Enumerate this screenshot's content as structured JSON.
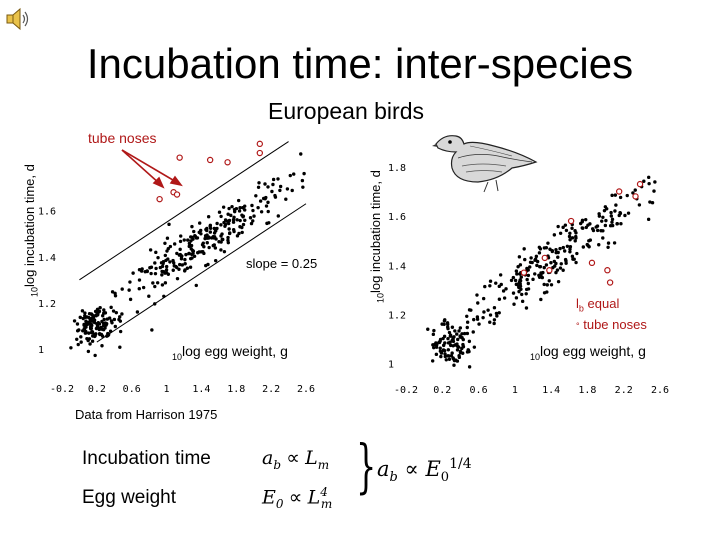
{
  "slide": {
    "title": "Incubation time: inter-species",
    "subtitle": "European birds",
    "credit": "Data from Harrison 1975"
  },
  "colors": {
    "accent": "#b01818",
    "points": "#000000"
  },
  "icons": {
    "speaker": "speaker-icon",
    "bird": "bird-illustration"
  },
  "left_plot": {
    "ylabel_sub": "10",
    "ylabel": "log incubation time, d",
    "xlabel_sub": "10",
    "xlabel": "log egg weight, g",
    "annotation": "tube noses",
    "slope_label": "slope = 0.25"
  },
  "right_plot": {
    "ylabel_sub": "10",
    "ylabel": "log incubation time, d",
    "xlabel_sub": "10",
    "xlabel": "log egg weight, g",
    "annotation_l": "l",
    "annotation_b": "b",
    "annotation_equal": " equal",
    "annotation_line2": "tube noses"
  },
  "formula": {
    "row1_label": "Incubation time",
    "row1_a": "a",
    "row1_a_sub": "b",
    "row1_L": "L",
    "row1_L_sub": "m",
    "row2_label": "Egg weight",
    "row2_E": "E",
    "row2_E_sub": "0",
    "row2_L": "L",
    "row2_L_sup": "4",
    "row2_L_sub": "m",
    "propto": "∝",
    "result_a": "a",
    "result_a_sub": "b",
    "result_E": "E",
    "result_E_sub": "0",
    "result_exp": "1/4",
    "brace": "}"
  },
  "chart_data": [
    {
      "type": "scatter",
      "title": "European birds",
      "xlabel": "10log egg weight, g",
      "ylabel": "10log incubation time, d",
      "xlim": [
        -0.2,
        2.6
      ],
      "ylim": [
        0.9,
        1.95
      ],
      "xticks": [
        -0.2,
        0.2,
        0.6,
        1,
        1.4,
        1.8,
        2.2,
        2.6
      ],
      "xtick_labels": [
        "-0.2",
        "0.2",
        "0.6",
        "1",
        "1.4",
        "1.8",
        "2.2",
        "2.6"
      ],
      "yticks": [
        1.0,
        1.2,
        1.4,
        1.6
      ],
      "ytick_labels": [
        "1",
        "1.2",
        "1.4",
        "1.6"
      ],
      "guide_lines": [
        {
          "name": "upper",
          "x": [
            0.0,
            2.4
          ],
          "y": [
            1.3,
            1.9
          ]
        },
        {
          "name": "lower",
          "x": [
            0.2,
            2.6
          ],
          "y": [
            1.03,
            1.63
          ]
        }
      ],
      "highlighted": [
        {
          "x": 1.15,
          "y": 1.83
        },
        {
          "x": 1.5,
          "y": 1.82
        },
        {
          "x": 1.7,
          "y": 1.81
        },
        {
          "x": 2.07,
          "y": 1.89
        },
        {
          "x": 2.07,
          "y": 1.85
        },
        {
          "x": 0.92,
          "y": 1.65
        },
        {
          "x": 1.08,
          "y": 1.68
        },
        {
          "x": 1.12,
          "y": 1.67
        }
      ],
      "series": {
        "name": "species",
        "count": 380,
        "clusters": [
          {
            "n": 120,
            "x_mean": 0.18,
            "x_sd": 0.12,
            "y_mean": 1.1,
            "y_sd": 0.045
          },
          {
            "n": 260,
            "x_mean": 1.45,
            "x_sd": 0.5,
            "slope": 0.25,
            "intercept": 1.11,
            "y_sd": 0.05
          }
        ]
      }
    },
    {
      "type": "scatter",
      "title": "European birds",
      "xlabel": "10log egg weight, g",
      "ylabel": "10log incubation time, d",
      "xlim": [
        -0.2,
        2.6
      ],
      "ylim": [
        0.95,
        1.95
      ],
      "xticks": [
        -0.2,
        0.2,
        0.6,
        1,
        1.4,
        1.8,
        2.2,
        2.6
      ],
      "xtick_labels": [
        "-0.2",
        "0.2",
        "0.6",
        "1",
        "1.4",
        "1.8",
        "2.2",
        "2.6"
      ],
      "yticks": [
        1.0,
        1.2,
        1.4,
        1.6,
        1.8
      ],
      "ytick_labels": [
        "1",
        "1.2",
        "1.4",
        "1.6",
        "1.8"
      ],
      "highlighted": [
        {
          "x": 1.1,
          "y": 1.37
        },
        {
          "x": 1.33,
          "y": 1.43
        },
        {
          "x": 1.38,
          "y": 1.38
        },
        {
          "x": 1.62,
          "y": 1.58
        },
        {
          "x": 1.85,
          "y": 1.41
        },
        {
          "x": 2.02,
          "y": 1.38
        },
        {
          "x": 2.33,
          "y": 1.68
        },
        {
          "x": 2.38,
          "y": 1.73
        },
        {
          "x": 2.15,
          "y": 1.7
        },
        {
          "x": 2.05,
          "y": 1.33
        }
      ],
      "series": {
        "name": "species (lb equal)",
        "count": 340,
        "clusters": [
          {
            "n": 90,
            "x_mean": 0.3,
            "x_sd": 0.12,
            "y_mean": 1.08,
            "y_sd": 0.045
          },
          {
            "n": 250,
            "x_mean": 1.45,
            "x_sd": 0.55,
            "slope": 0.27,
            "intercept": 1.04,
            "y_sd": 0.05
          }
        ]
      }
    }
  ]
}
